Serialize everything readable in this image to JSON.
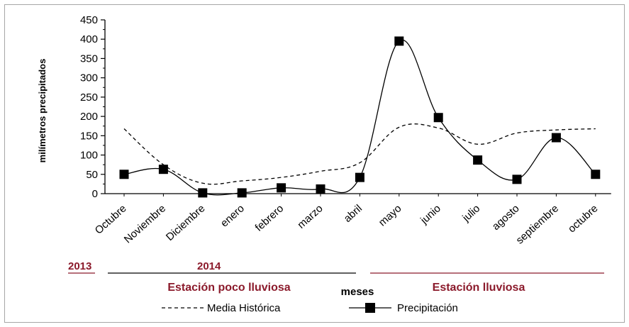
{
  "chart_data": {
    "type": "line",
    "title": "",
    "ylabel": "milímetros precipitados",
    "xlabel": "meses",
    "ylim": [
      0,
      450
    ],
    "yticks": [
      0,
      50,
      100,
      150,
      200,
      250,
      300,
      350,
      400,
      450
    ],
    "categories": [
      "Octubre",
      "Noviembre",
      "Diciembre",
      "enero",
      "febrero",
      "marzo",
      "abril",
      "mayo",
      "junio",
      "julio",
      "agosto",
      "septiembre",
      "octubre"
    ],
    "series": [
      {
        "name": "Media Histórica",
        "style": "dashed",
        "values": [
          168,
          75,
          27,
          33,
          42,
          58,
          80,
          172,
          170,
          128,
          157,
          165,
          168
        ]
      },
      {
        "name": "Precipitación",
        "style": "solid-square-markers",
        "values": [
          50,
          63,
          2,
          2,
          15,
          12,
          42,
          395,
          197,
          87,
          37,
          145,
          50
        ]
      }
    ],
    "annotations": {
      "years": [
        "2013",
        "2014"
      ],
      "seasons": [
        "Estación poco lluviosa",
        "Estación lluviosa"
      ]
    },
    "grid": false,
    "legend_position": "bottom"
  },
  "colors": {
    "axis": "#000000",
    "annotation": "#8b1a2b",
    "frame": "#a6a6a6"
  }
}
